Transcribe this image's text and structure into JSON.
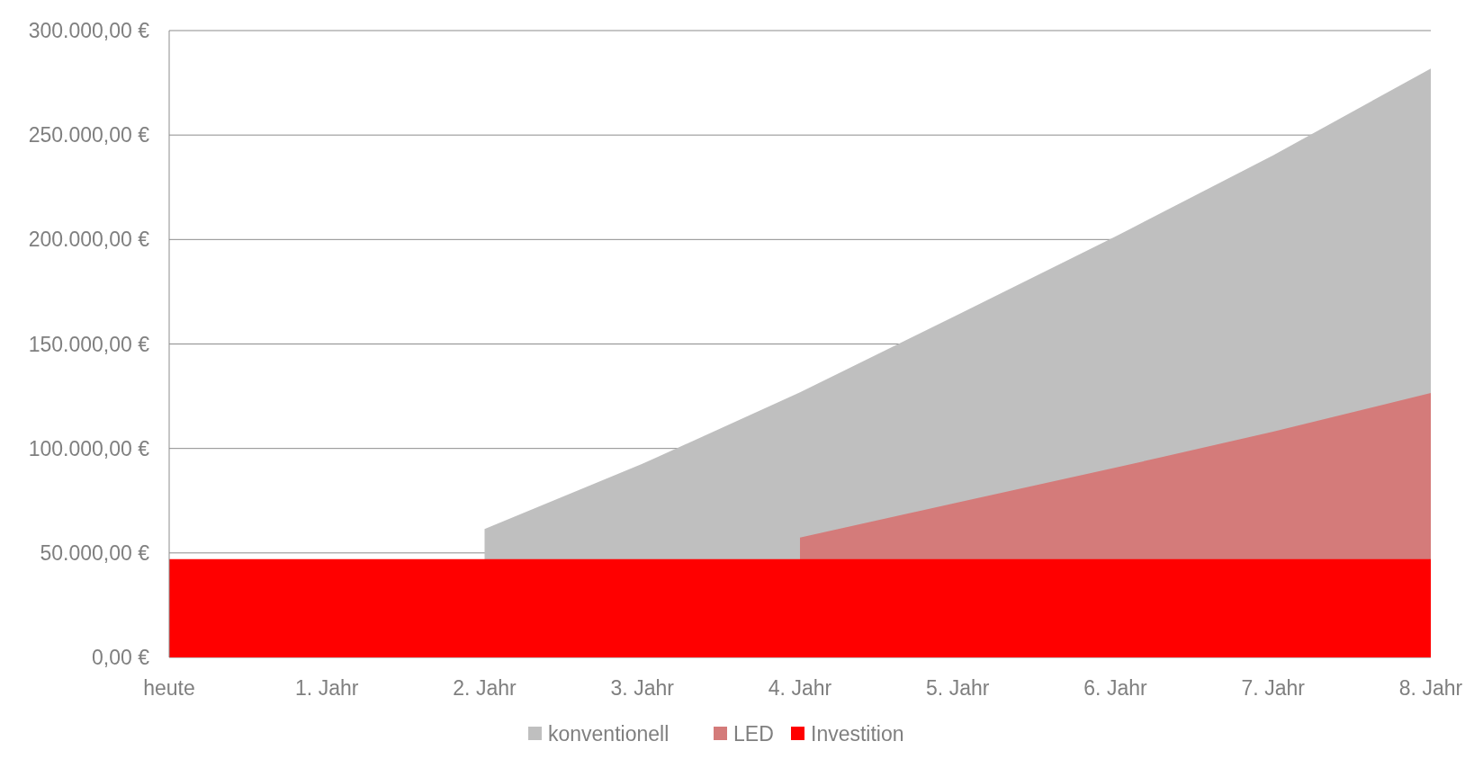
{
  "chart_data": {
    "type": "area",
    "categories": [
      "heute",
      "1. Jahr",
      "2. Jahr",
      "3. Jahr",
      "4. Jahr",
      "5. Jahr",
      "6. Jahr",
      "7. Jahr",
      "8. Jahr"
    ],
    "series": [
      {
        "name": "konventionell",
        "color": "#bfbfbf",
        "values": [
          null,
          null,
          61400,
          92600,
          126900,
          164000,
          201400,
          240300,
          281800
        ]
      },
      {
        "name": "LED",
        "color": "#d47b7a",
        "values": [
          null,
          null,
          null,
          null,
          57400,
          74100,
          90800,
          108000,
          126500
        ]
      },
      {
        "name": "Investition",
        "color": "#ff0000",
        "values": [
          47000,
          47000,
          47000,
          47000,
          47000,
          47000,
          47000,
          47000,
          47000
        ]
      }
    ],
    "ylim": [
      0,
      300000
    ],
    "yticks": [
      {
        "value": 0,
        "label": "0,00 €"
      },
      {
        "value": 50000,
        "label": "50.000,00 €"
      },
      {
        "value": 100000,
        "label": "100.000,00 €"
      },
      {
        "value": 150000,
        "label": "150.000,00 €"
      },
      {
        "value": 200000,
        "label": "200.000,00 €"
      },
      {
        "value": 250000,
        "label": "250.000,00 €"
      },
      {
        "value": 300000,
        "label": "300.000,00 €"
      }
    ],
    "grid": "y",
    "legend": "bottom"
  }
}
